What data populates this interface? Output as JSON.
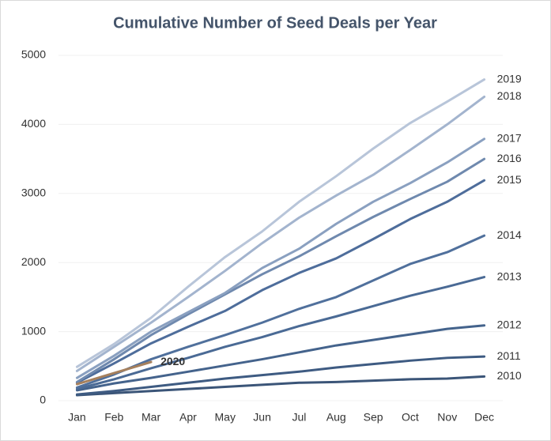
{
  "chart_data": {
    "type": "line",
    "title": "Cumulative Number of Seed Deals per Year",
    "categories": [
      "Jan",
      "Feb",
      "Mar",
      "Apr",
      "May",
      "Jun",
      "Jul",
      "Aug",
      "Sep",
      "Oct",
      "Nov",
      "Dec"
    ],
    "ylim": [
      0,
      5000
    ],
    "yticks": [
      0,
      1000,
      2000,
      3000,
      4000,
      5000
    ],
    "grid": true,
    "series": [
      {
        "name": "2010",
        "color": "#3b5578",
        "values": [
          80,
          110,
          140,
          170,
          200,
          230,
          260,
          270,
          290,
          310,
          320,
          350
        ]
      },
      {
        "name": "2011",
        "color": "#3e5b82",
        "values": [
          90,
          140,
          200,
          260,
          320,
          370,
          420,
          480,
          530,
          580,
          620,
          640
        ]
      },
      {
        "name": "2012",
        "color": "#44638c",
        "values": [
          150,
          250,
          330,
          420,
          510,
          600,
          700,
          800,
          880,
          960,
          1040,
          1090
        ]
      },
      {
        "name": "2013",
        "color": "#4a6a95",
        "values": [
          170,
          310,
          470,
          620,
          780,
          920,
          1080,
          1220,
          1370,
          1520,
          1650,
          1790
        ]
      },
      {
        "name": "2014",
        "color": "#50709c",
        "values": [
          190,
          380,
          600,
          780,
          950,
          1130,
          1330,
          1500,
          1740,
          1980,
          2150,
          2390
        ]
      },
      {
        "name": "2015",
        "color": "#4e6d9b",
        "values": [
          260,
          540,
          830,
          1070,
          1300,
          1600,
          1850,
          2060,
          2340,
          2630,
          2880,
          3190
        ]
      },
      {
        "name": "2016",
        "color": "#6f89ae",
        "values": [
          270,
          600,
          950,
          1250,
          1540,
          1830,
          2090,
          2380,
          2660,
          2920,
          3170,
          3500
        ]
      },
      {
        "name": "2017",
        "color": "#8aa0c0",
        "values": [
          330,
          650,
          1000,
          1280,
          1560,
          1920,
          2200,
          2560,
          2880,
          3150,
          3450,
          3790
        ]
      },
      {
        "name": "2018",
        "color": "#a3b4ce",
        "values": [
          430,
          780,
          1130,
          1500,
          1880,
          2280,
          2650,
          2970,
          3270,
          3630,
          4000,
          4400
        ]
      },
      {
        "name": "2019",
        "color": "#b8c5d9",
        "values": [
          490,
          820,
          1200,
          1650,
          2080,
          2450,
          2880,
          3250,
          3650,
          4020,
          4330,
          4650
        ]
      },
      {
        "name": "2020",
        "color": "#a6805d",
        "values": [
          240,
          400,
          560,
          null,
          null,
          null,
          null,
          null,
          null,
          null,
          null,
          null
        ]
      }
    ]
  }
}
